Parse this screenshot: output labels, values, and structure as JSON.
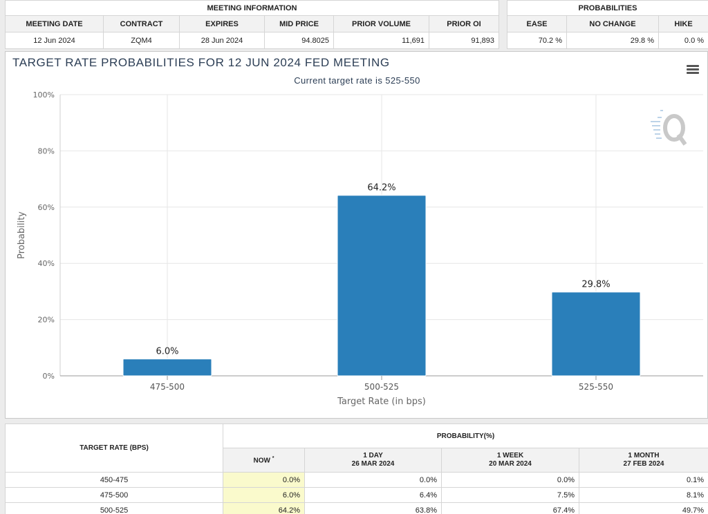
{
  "meeting_info": {
    "group_label": "MEETING INFORMATION",
    "columns": [
      "MEETING DATE",
      "CONTRACT",
      "EXPIRES",
      "MID PRICE",
      "PRIOR VOLUME",
      "PRIOR OI"
    ],
    "values": [
      "12 Jun 2024",
      "ZQM4",
      "28 Jun 2024",
      "94.8025",
      "11,691",
      "91,893"
    ]
  },
  "probabilities": {
    "group_label": "PROBABILITIES",
    "columns": [
      "EASE",
      "NO CHANGE",
      "HIKE"
    ],
    "values": [
      "70.2 %",
      "29.8 %",
      "0.0 %"
    ]
  },
  "chart_title": "TARGET RATE PROBABILITIES FOR 12 JUN 2024 FED MEETING",
  "chart_subtitle": "Current target rate is 525-550",
  "colors": {
    "bar": "#2a7fba",
    "title": "#2c3e55",
    "now_cell": "#fafacc"
  },
  "chart_data": {
    "type": "bar",
    "title": "TARGET RATE PROBABILITIES FOR 12 JUN 2024 FED MEETING",
    "subtitle": "Current target rate is 525-550",
    "categories": [
      "475-500",
      "500-525",
      "525-550"
    ],
    "values": [
      6.0,
      64.2,
      29.8
    ],
    "value_labels": [
      "6.0%",
      "64.2%",
      "29.8%"
    ],
    "xlabel": "Target Rate (in bps)",
    "ylabel": "Probability",
    "ylim": [
      0,
      100
    ],
    "yticks": [
      0,
      20,
      40,
      60,
      80,
      100
    ],
    "ytick_labels": [
      "0%",
      "20%",
      "40%",
      "60%",
      "80%",
      "100%"
    ],
    "grid": true
  },
  "rate_table": {
    "target_rate_header": "TARGET RATE (BPS)",
    "probability_header": "PROBABILITY(%)",
    "now_label": "NOW",
    "now_marker": "*",
    "sub_columns": [
      {
        "label": "1 DAY",
        "date": "26 MAR 2024"
      },
      {
        "label": "1 WEEK",
        "date": "20 MAR 2024"
      },
      {
        "label": "1 MONTH",
        "date": "27 FEB 2024"
      }
    ],
    "rows": [
      {
        "rate": "450-475",
        "values": [
          "0.0%",
          "0.0%",
          "0.0%",
          "0.1%"
        ]
      },
      {
        "rate": "475-500",
        "values": [
          "6.0%",
          "6.4%",
          "7.5%",
          "8.1%"
        ]
      },
      {
        "rate": "500-525",
        "values": [
          "64.2%",
          "63.8%",
          "67.4%",
          "49.7%"
        ]
      }
    ]
  }
}
